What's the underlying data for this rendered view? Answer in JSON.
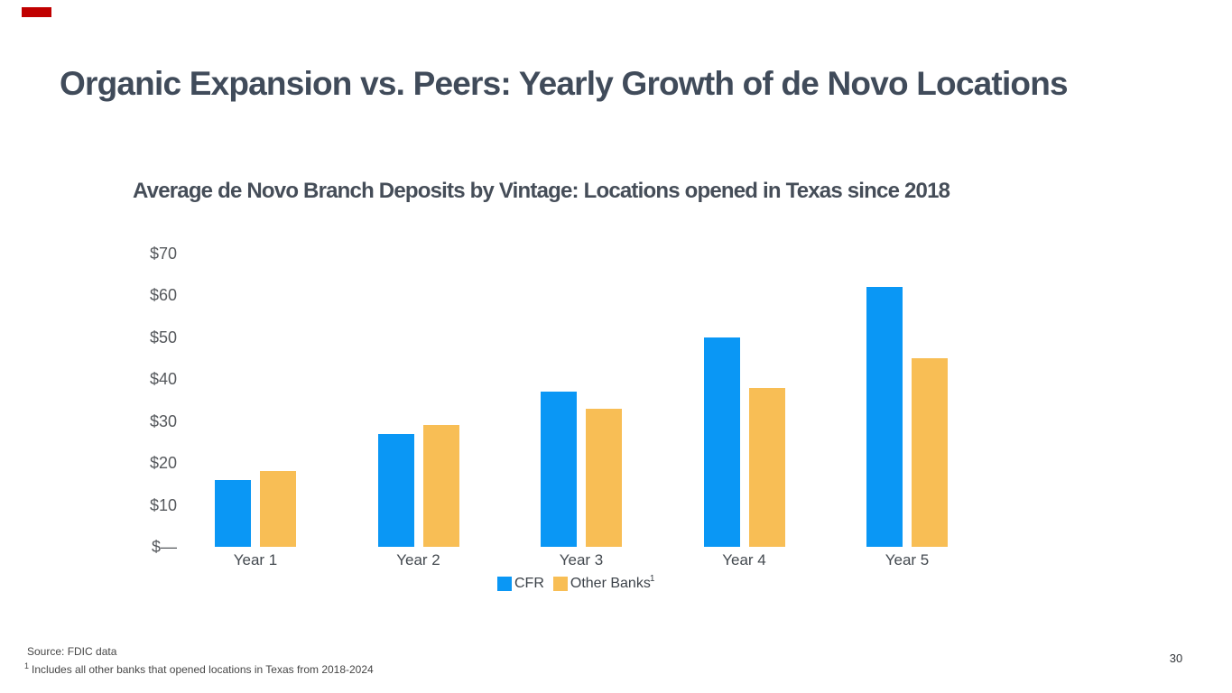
{
  "slide": {
    "title": "Organic Expansion vs. Peers: Yearly Growth of de Novo Locations",
    "accent_mark_color": "#c00000",
    "source_note": "Source: FDIC data",
    "footnote": {
      "marker": "1",
      "text": "Includes all other banks that opened locations in Texas from 2018-2024"
    },
    "page_number": "30"
  },
  "chart_data": {
    "type": "bar",
    "title": "Average de Novo Branch Deposits by Vintage: Locations opened in Texas since 2018",
    "categories": [
      "Year 1",
      "Year 2",
      "Year 3",
      "Year 4",
      "Year 5"
    ],
    "series": [
      {
        "name": "CFR",
        "color": "#0a97f5",
        "values": [
          16,
          27,
          37,
          50,
          62
        ]
      },
      {
        "name": "Other Banks",
        "footnote_marker": "1",
        "color": "#f8be55",
        "values": [
          18,
          29,
          33,
          38,
          45
        ]
      }
    ],
    "y_ticks": [
      {
        "label": "$70",
        "value": 70
      },
      {
        "label": "$60",
        "value": 60
      },
      {
        "label": "$50",
        "value": 50
      },
      {
        "label": "$40",
        "value": 40
      },
      {
        "label": "$30",
        "value": 30
      },
      {
        "label": "$20",
        "value": 20
      },
      {
        "label": "$10",
        "value": 10
      },
      {
        "label": "$—",
        "value": 0
      }
    ],
    "ylim": [
      0,
      70
    ],
    "xlabel": "",
    "ylabel": "",
    "grid": false,
    "legend_position": "bottom"
  }
}
